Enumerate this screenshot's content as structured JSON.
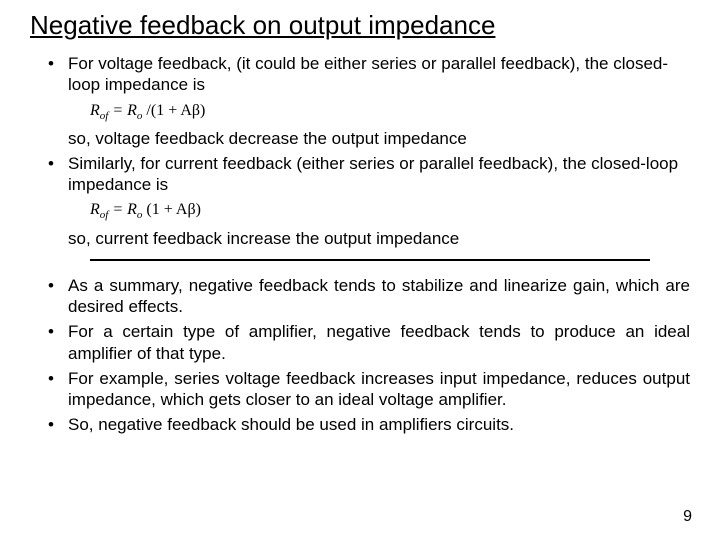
{
  "title": "Negative feedback on output impedance",
  "bullet1": "For voltage feedback, (it could be either series or parallel feedback), the closed-loop impedance is",
  "formula1_lhs": "R",
  "formula1_lhs_sub": "of",
  "formula1_mid": " = R",
  "formula1_mid_sub": "o",
  "formula1_rhs": " /(1 + Aβ)",
  "cont1": "so, voltage feedback decrease the output impedance",
  "bullet2": "Similarly, for current feedback (either series or parallel feedback), the closed-loop impedance is",
  "formula2_lhs": "R",
  "formula2_lhs_sub": "of",
  "formula2_mid": " = R",
  "formula2_mid_sub": "o",
  "formula2_rhs": " (1 + Aβ)",
  "cont2": "so, current feedback increase the output impedance",
  "bullet3": "As a summary, negative feedback tends to stabilize and linearize gain, which are desired effects.",
  "bullet4": "For a certain type of amplifier, negative feedback tends to produce an ideal amplifier of that type.",
  "bullet5": "For example, series voltage feedback increases input impedance, reduces output impedance, which gets closer to an ideal voltage amplifier.",
  "bullet6": "So, negative feedback should be used in amplifiers circuits.",
  "page_number": "9"
}
